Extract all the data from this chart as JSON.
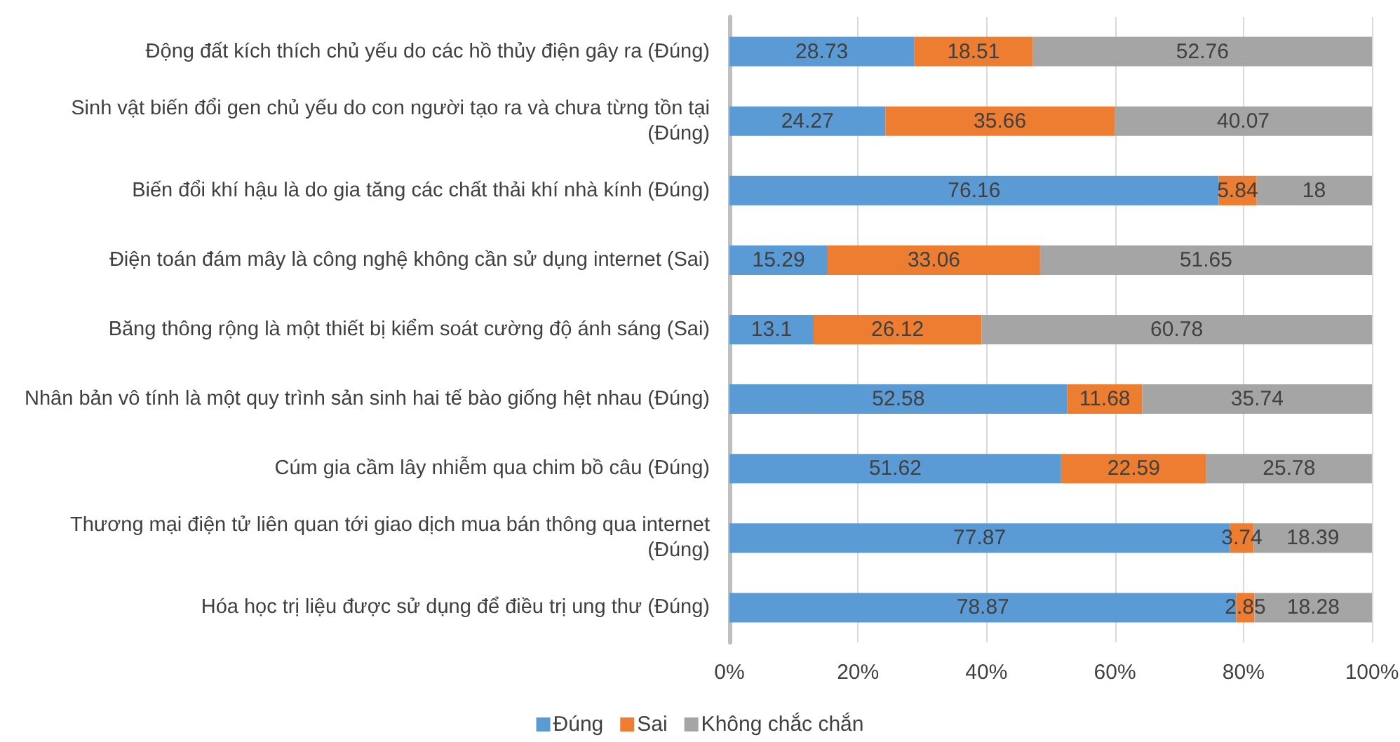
{
  "chart_data": {
    "type": "bar",
    "orientation": "horizontal",
    "stacked": true,
    "categories": [
      "Động đất kích thích chủ yếu do các hồ thủy điện gây ra (Đúng)",
      "Sinh vật biến đổi gen chủ yếu do con người tạo ra và chưa từng tồn tại (Đúng)",
      "Biến đổi khí hậu là do gia tăng các chất thải khí nhà kính (Đúng)",
      "Điện toán đám mây là công nghệ không cần sử dụng internet (Sai)",
      "Băng thông rộng là một thiết bị kiểm soát cường độ ánh sáng (Sai)",
      "Nhân bản vô tính là một quy trình sản sinh hai tế bào giống hệt nhau (Đúng)",
      "Cúm gia cầm lây nhiễm qua chim bồ câu (Đúng)",
      "Thương mại điện tử liên quan tới giao dịch mua bán thông qua internet (Đúng)",
      "Hóa học trị liệu được sử dụng để điều trị ung thư (Đúng)"
    ],
    "series": [
      {
        "name": "Đúng",
        "color": "#5b9bd5",
        "values": [
          28.73,
          24.27,
          76.16,
          15.29,
          13.1,
          52.58,
          51.62,
          77.87,
          78.87
        ]
      },
      {
        "name": "Sai",
        "color": "#ed7d31",
        "values": [
          18.51,
          35.66,
          5.84,
          33.06,
          26.12,
          11.68,
          22.59,
          3.74,
          2.85
        ]
      },
      {
        "name": "Không chắc chắn",
        "color": "#a5a5a5",
        "values": [
          52.76,
          40.07,
          18,
          51.65,
          60.78,
          35.74,
          25.78,
          18.39,
          18.28
        ]
      }
    ],
    "xlim": [
      0,
      100
    ],
    "xticks": [
      {
        "value": 0,
        "label": "0%"
      },
      {
        "value": 20,
        "label": "20%"
      },
      {
        "value": 40,
        "label": "40%"
      },
      {
        "value": 60,
        "label": "60%"
      },
      {
        "value": 80,
        "label": "80%"
      },
      {
        "value": 100,
        "label": "100%"
      }
    ],
    "grid": "x",
    "legend": "bottom",
    "data_labels": true
  }
}
